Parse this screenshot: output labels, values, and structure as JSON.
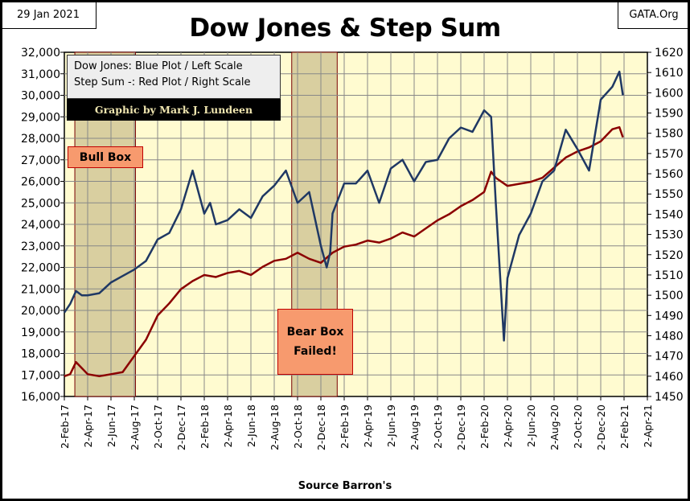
{
  "header": {
    "date": "29 Jan 2021",
    "site": "GATA.Org"
  },
  "legend": {
    "line1": "Dow Jones: Blue Plot / Left Scale",
    "line2": "Step Sum -: Red Plot / Right Scale",
    "credit": "Graphic by Mark J. Lundeen"
  },
  "annotations": {
    "bull": "Bull Box",
    "bear_line1": "Bear Box",
    "bear_line2": "Failed!"
  },
  "source": "Source Barron's",
  "colors": {
    "dow": "#1f3864",
    "step": "#8b0000",
    "plot_bg": "#fffbd0",
    "box_fill": "#d9cfa0"
  },
  "chart_data": {
    "type": "line",
    "title": "Dow Jones & Step Sum",
    "xlabel": "Source Barron's",
    "x_ticks": [
      "2-Feb-17",
      "2-Apr-17",
      "2-Jun-17",
      "2-Aug-17",
      "2-Oct-17",
      "2-Dec-17",
      "2-Feb-18",
      "2-Apr-18",
      "2-Jun-18",
      "2-Aug-18",
      "2-Oct-18",
      "2-Dec-18",
      "2-Feb-19",
      "2-Apr-19",
      "2-Jun-19",
      "2-Aug-19",
      "2-Oct-19",
      "2-Dec-19",
      "2-Feb-20",
      "2-Apr-20",
      "2-Jun-20",
      "2-Aug-20",
      "2-Oct-20",
      "2-Dec-20",
      "2-Feb-21",
      "2-Apr-21"
    ],
    "x_unit": "months since 2-Feb-17",
    "xlim": [
      0,
      50
    ],
    "left_axis": {
      "ylim": [
        16000,
        32000
      ],
      "ticks": [
        "16,000",
        "17,000",
        "18,000",
        "19,000",
        "20,000",
        "21,000",
        "22,000",
        "23,000",
        "24,000",
        "25,000",
        "26,000",
        "27,000",
        "28,000",
        "29,000",
        "30,000",
        "31,000",
        "32,000"
      ]
    },
    "right_axis": {
      "ylim": [
        1450,
        1620
      ],
      "ticks": [
        "1450",
        "1460",
        "1470",
        "1480",
        "1490",
        "1500",
        "1510",
        "1520",
        "1530",
        "1540",
        "1550",
        "1560",
        "1570",
        "1580",
        "1590",
        "1600",
        "1610",
        "1620"
      ]
    },
    "shaded_boxes": [
      {
        "name": "Bull Box",
        "from": 0.9,
        "to": 6.1
      },
      {
        "name": "Bear Box",
        "from": 19.5,
        "to": 23.4
      }
    ],
    "series": [
      {
        "name": "Dow Jones",
        "axis": "left",
        "x": [
          0,
          0.5,
          1,
          1.5,
          2,
          3,
          4,
          5,
          6,
          7,
          8,
          9,
          10,
          11,
          12,
          12.5,
          13,
          14,
          15,
          16,
          17,
          18,
          19,
          20,
          21,
          22,
          22.5,
          22.8,
          23,
          24,
          25,
          26,
          27,
          28,
          29,
          30,
          31,
          32,
          33,
          34,
          35,
          36,
          36.6,
          37,
          37.7,
          38,
          39,
          40,
          41,
          42,
          43,
          44,
          45,
          46,
          47,
          47.6,
          47.9
        ],
        "y": [
          19900,
          20300,
          20900,
          20700,
          20700,
          20800,
          21300,
          21600,
          21900,
          22300,
          23300,
          23600,
          24700,
          26500,
          24500,
          25000,
          24000,
          24200,
          24700,
          24300,
          25300,
          25800,
          26500,
          25000,
          25500,
          23000,
          22000,
          22700,
          24500,
          25900,
          25900,
          26500,
          25000,
          26600,
          27000,
          26000,
          26900,
          27000,
          28000,
          28500,
          28300,
          29300,
          29000,
          25000,
          18600,
          21500,
          23500,
          24500,
          26000,
          26500,
          28400,
          27500,
          26500,
          29800,
          30400,
          31100,
          30000
        ]
      },
      {
        "name": "Step Sum",
        "axis": "right",
        "x": [
          0,
          0.5,
          1,
          1.5,
          2,
          3,
          4,
          5,
          6,
          7,
          8,
          9,
          10,
          11,
          12,
          13,
          14,
          15,
          16,
          17,
          18,
          19,
          20,
          21,
          22,
          23,
          24,
          25,
          26,
          27,
          28,
          29,
          30,
          31,
          32,
          33,
          34,
          35,
          36,
          36.6,
          37,
          38,
          39,
          40,
          41,
          42,
          43,
          44,
          45,
          46,
          47,
          47.6,
          47.9
        ],
        "y": [
          1460,
          1461,
          1467,
          1464,
          1461,
          1460,
          1461,
          1462,
          1470,
          1478,
          1490,
          1496,
          1503,
          1507,
          1510,
          1509,
          1511,
          1512,
          1510,
          1514,
          1517,
          1518,
          1521,
          1518,
          1516,
          1521,
          1524,
          1525,
          1527,
          1526,
          1528,
          1531,
          1529,
          1533,
          1537,
          1540,
          1544,
          1547,
          1551,
          1561,
          1558,
          1554,
          1555,
          1556,
          1558,
          1563,
          1568,
          1571,
          1573,
          1576,
          1582,
          1583,
          1578
        ]
      }
    ]
  }
}
